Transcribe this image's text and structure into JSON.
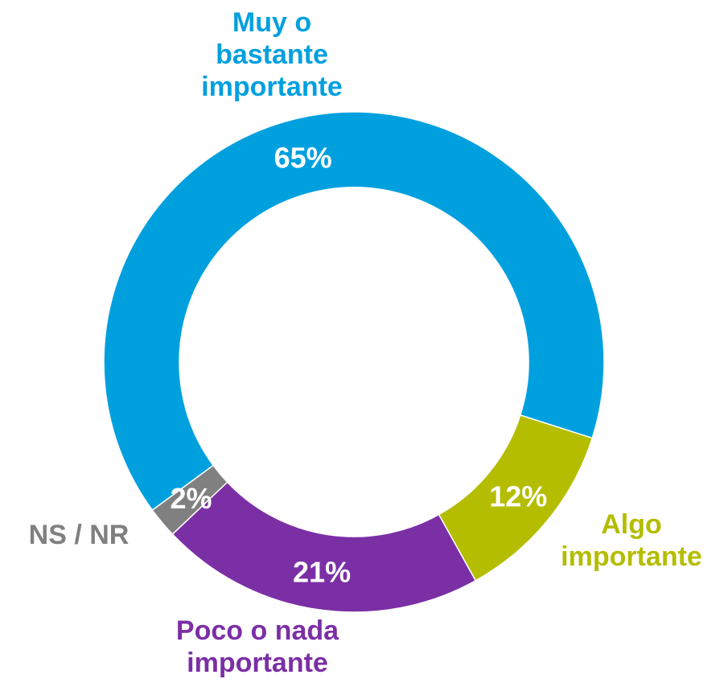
{
  "chart_data": {
    "type": "donut",
    "categories": [
      "Muy o bastante importante",
      "Algo importante",
      "Poco o nada importante",
      "NS / NR"
    ],
    "values": [
      65,
      12,
      21,
      2
    ],
    "value_labels": [
      "65%",
      "12%",
      "21%",
      "2%"
    ],
    "colors": [
      "#00a0df",
      "#b4bd00",
      "#7b2fa5",
      "#808080"
    ]
  }
}
